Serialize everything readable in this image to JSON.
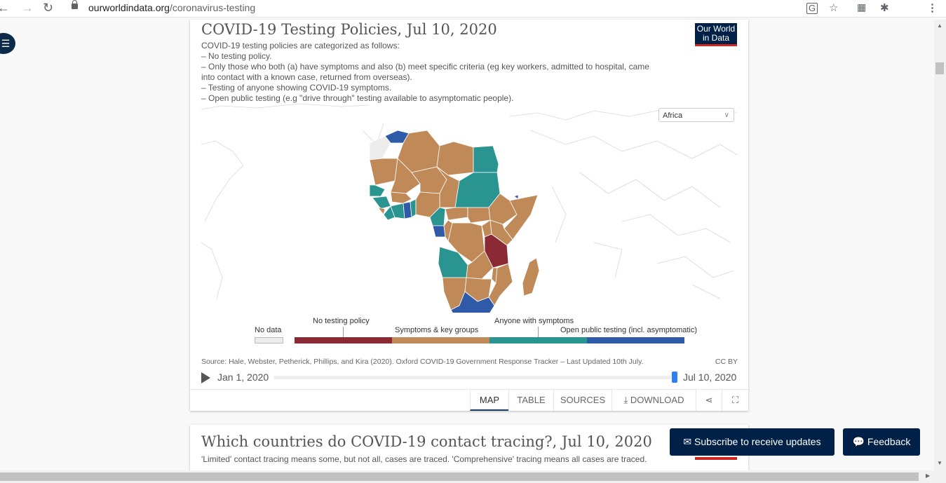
{
  "browser": {
    "url_domain": "ourworldindata.org",
    "url_path": "/coronavirus-testing",
    "icons": {
      "back": "back-arrow-icon",
      "forward": "forward-arrow-icon",
      "reload": "reload-icon",
      "translate": "translate-icon",
      "star": "bookmark-star-icon",
      "apps": "grid-icon",
      "extensions": "puzzle-icon",
      "menu": "kebab-menu-icon"
    }
  },
  "chart": {
    "title": "COVID-19 Testing Policies, Jul 10, 2020",
    "subtitle_lines": [
      "COVID-19 testing policies are categorized as follows:",
      "– No testing policy.",
      "– Only those who both (a) have symptoms and also (b) meet specific criteria (eg key workers, admitted to hospital, came",
      "into contact with a known case, returned from overseas).",
      "– Testing of anyone showing COVID-19 symptoms.",
      "– Open public testing (e.g \"drive through\" testing available to asymptomatic people)."
    ],
    "logo": {
      "line1": "Our World",
      "line2": "in Data"
    },
    "region_select": "Africa",
    "legend": {
      "no_data": "No data",
      "no_testing": "No testing policy",
      "symptoms_key": "Symptoms & key groups",
      "anyone_symptoms": "Anyone with symptoms",
      "open_public": "Open public testing (incl. asymptomatic)"
    },
    "colors": {
      "no_data": "#ececec",
      "no_testing": "#8b2a34",
      "symptoms_key": "#c08a58",
      "anyone_symptoms": "#2a9491",
      "open_public": "#2f5aa8"
    },
    "source": "Source: Hale, Webster, Petherick, Phillips, and Kira (2020). Oxford COVID-19 Government Response Tracker – Last Updated 10th July.",
    "license": "CC BY",
    "timeline": {
      "start": "Jan 1, 2020",
      "end": "Jul 10, 2020"
    },
    "tabs": [
      "MAP",
      "TABLE",
      "SOURCES",
      "DOWNLOAD"
    ],
    "active_tab": "MAP"
  },
  "next_chart": {
    "title": "Which countries do COVID-19 contact tracing?, Jul 10, 2020",
    "description": "'Limited' contact tracing means some, but not all, cases are traced. 'Comprehensive' tracing means all cases are traced."
  },
  "buttons": {
    "subscribe": "Subscribe to receive updates",
    "feedback": "Feedback"
  }
}
